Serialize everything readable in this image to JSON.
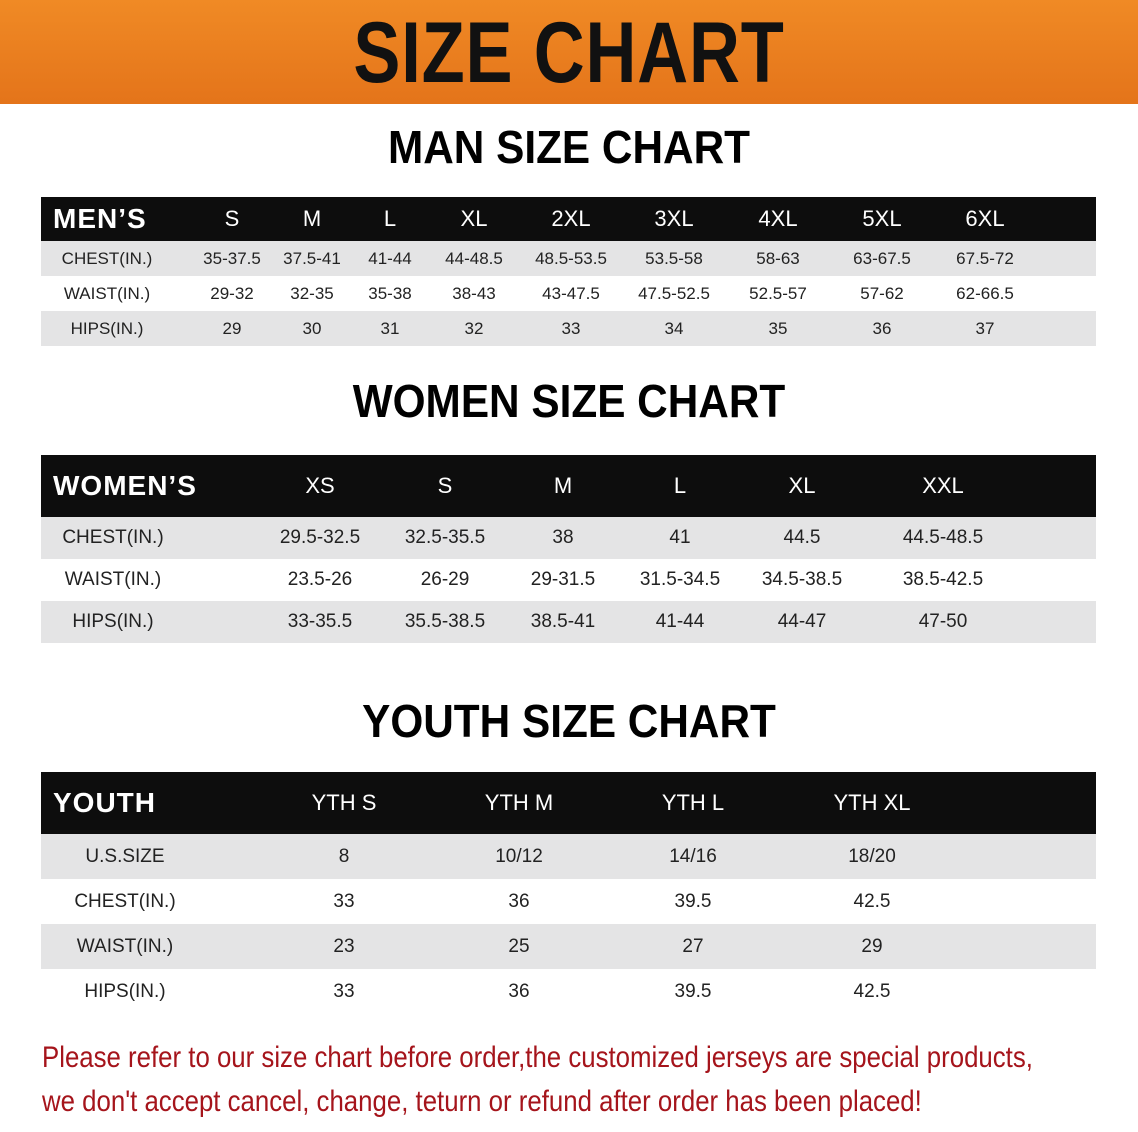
{
  "banner": {
    "title": "SIZE CHART",
    "color": "#e87a1e"
  },
  "men": {
    "title": "MAN SIZE CHART",
    "header": [
      "MEN’S",
      "S",
      "M",
      "L",
      "XL",
      "2XL",
      "3XL",
      "4XL",
      "5XL",
      "6XL"
    ],
    "rows": [
      [
        "CHEST(IN.)",
        "35-37.5",
        "37.5-41",
        "41-44",
        "44-48.5",
        "48.5-53.5",
        "53.5-58",
        "58-63",
        "63-67.5",
        "67.5-72"
      ],
      [
        "WAIST(IN.)",
        "29-32",
        "32-35",
        "35-38",
        "38-43",
        "43-47.5",
        "47.5-52.5",
        "52.5-57",
        "57-62",
        "62-66.5"
      ],
      [
        "HIPS(IN.)",
        "29",
        "30",
        "31",
        "32",
        "33",
        "34",
        "35",
        "36",
        "37"
      ]
    ]
  },
  "women": {
    "title": "WOMEN SIZE CHART",
    "header": [
      "WOMEN’S",
      "XS",
      "S",
      "M",
      "L",
      "XL",
      "XXL"
    ],
    "rows": [
      [
        "CHEST(IN.)",
        "29.5-32.5",
        "32.5-35.5",
        "38",
        "41",
        "44.5",
        "44.5-48.5"
      ],
      [
        "WAIST(IN.)",
        "23.5-26",
        "26-29",
        "29-31.5",
        "31.5-34.5",
        "34.5-38.5",
        "38.5-42.5"
      ],
      [
        "HIPS(IN.)",
        "33-35.5",
        "35.5-38.5",
        "38.5-41",
        "41-44",
        "44-47",
        "47-50"
      ]
    ]
  },
  "youth": {
    "title": "YOUTH SIZE CHART",
    "header": [
      "YOUTH",
      "YTH S",
      "YTH M",
      "YTH L",
      "YTH XL"
    ],
    "rows": [
      [
        "U.S.SIZE",
        "8",
        "10/12",
        "14/16",
        "18/20"
      ],
      [
        "CHEST(IN.)",
        "33",
        "36",
        "39.5",
        "42.5"
      ],
      [
        "WAIST(IN.)",
        "23",
        "25",
        "27",
        "29"
      ],
      [
        "HIPS(IN.)",
        "33",
        "36",
        "39.5",
        "42.5"
      ]
    ]
  },
  "notice": {
    "line1": "Please refer to our size chart before order,the customized jerseys are special products,",
    "line2": "we don't accept cancel, change, teturn or refund after order has been placed!",
    "color": "#a5141b"
  }
}
